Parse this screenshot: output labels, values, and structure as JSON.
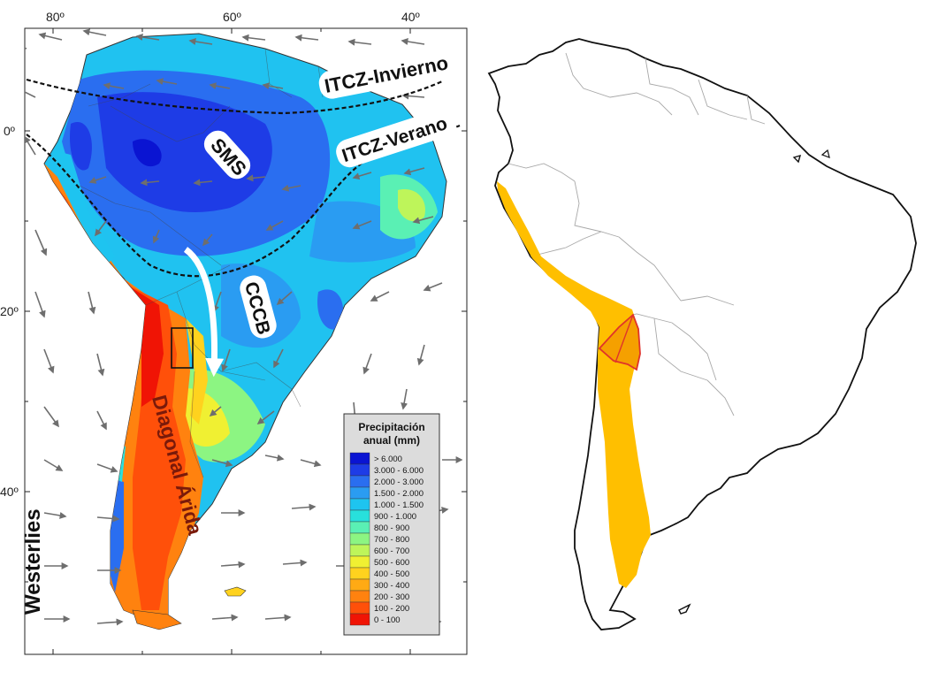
{
  "left_map": {
    "longitude_labels": [
      "80º",
      "60º",
      "40º"
    ],
    "latitude_labels": [
      "0º",
      "20º",
      "40º"
    ],
    "annotations": {
      "itcz_winter": "ITCZ-Invierno",
      "itcz_summer": "ITCZ-Verano",
      "sms": "SMS",
      "cccb": "CCCB",
      "arid_diagonal": "Diagonal Árida",
      "westerlies": "Westerlies"
    },
    "legend": {
      "title_line1": "Precipitación",
      "title_line2": "anual (mm)",
      "items": [
        {
          "label": "> 6.000",
          "color": "#0a14d2"
        },
        {
          "label": "3.000 - 6.000",
          "color": "#1e3ce6"
        },
        {
          "label": "2.000 - 3.000",
          "color": "#2a6ef0"
        },
        {
          "label": "1.500 - 2.000",
          "color": "#2a9cf2"
        },
        {
          "label": "1.000 - 1.500",
          "color": "#1ec4f0"
        },
        {
          "label": "900 - 1.000",
          "color": "#28e0dc"
        },
        {
          "label": "800 - 900",
          "color": "#5af0b4"
        },
        {
          "label": "700 - 800",
          "color": "#8cf582"
        },
        {
          "label": "600 - 700",
          "color": "#bef55a"
        },
        {
          "label": "500 - 600",
          "color": "#f0f032"
        },
        {
          "label": "400 - 500",
          "color": "#ffd21e"
        },
        {
          "label": "300 - 400",
          "color": "#ffaa14"
        },
        {
          "label": "200 - 300",
          "color": "#ff820f"
        },
        {
          "label": "100 - 200",
          "color": "#ff500a"
        },
        {
          "label": "0 - 100",
          "color": "#f01405"
        }
      ]
    }
  },
  "right_map": {
    "highlight_color": "#ffbf00",
    "outline_color": "#e0342a"
  }
}
